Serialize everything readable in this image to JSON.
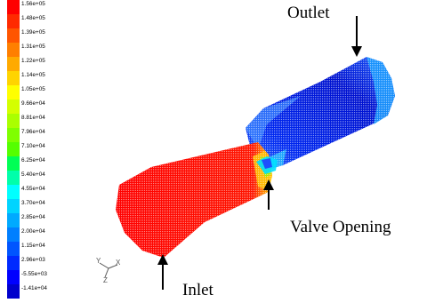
{
  "legend": {
    "labels": [
      "1.56e+05",
      "1.48e+05",
      "1.39e+05",
      "1.31e+05",
      "1.22e+05",
      "1.14e+05",
      "1.05e+05",
      "9.66e+04",
      "8.81e+04",
      "7.96e+04",
      "7.10e+04",
      "6.25e+04",
      "5.40e+04",
      "4.55e+04",
      "3.70e+04",
      "2.85e+04",
      "2.00e+04",
      "1.15e+04",
      "2.96e+03",
      "-5.55e+03",
      "-1.41e+04"
    ],
    "colors": [
      "#ff0000",
      "#ff2a00",
      "#ff5500",
      "#ff7f00",
      "#ffaa00",
      "#ffd400",
      "#ffff00",
      "#d4ff00",
      "#aaff00",
      "#7fff00",
      "#55ff00",
      "#00ff55",
      "#00ffaa",
      "#00ffff",
      "#00d4ff",
      "#00aaff",
      "#007fff",
      "#0055ff",
      "#002aff",
      "#0000ff",
      "#0000cc"
    ]
  },
  "axis_triad": {
    "y": "Y",
    "x": "X",
    "z": "Z"
  },
  "annotations": {
    "outlet": "Outlet",
    "valve_opening": "Valve Opening",
    "inlet": "Inlet"
  }
}
